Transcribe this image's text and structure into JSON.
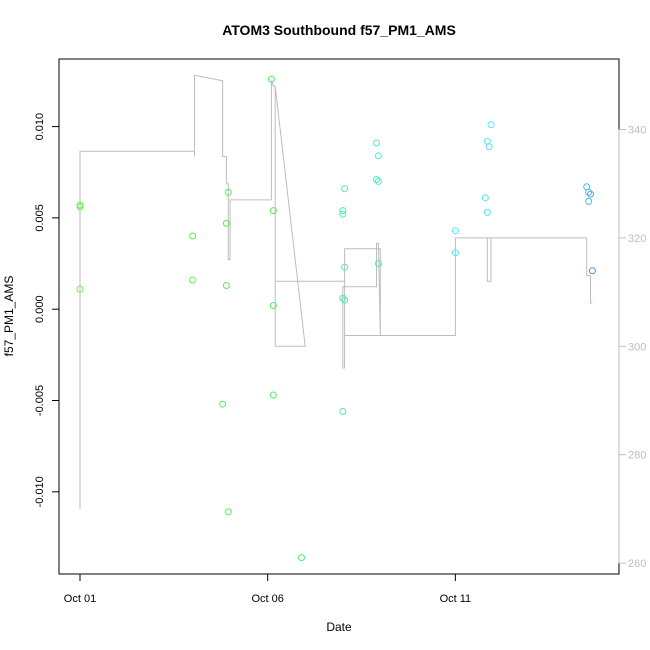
{
  "chart_data": {
    "type": "scatter",
    "title": "ATOM3 Southbound f57_PM1_AMS",
    "xlabel": "Date",
    "ylabel": "f57_PM1_AMS",
    "x_ticks": [
      {
        "day": 0,
        "label": "Oct 01"
      },
      {
        "day": 5,
        "label": "Oct 06"
      },
      {
        "day": 10,
        "label": "Oct 11"
      }
    ],
    "xlim": [
      0,
      13.8
    ],
    "ylim": [
      -0.0145,
      0.0137
    ],
    "y_ticks": [
      -0.01,
      -0.005,
      0.0,
      0.005,
      0.01
    ],
    "y_tick_labels": [
      "-0.010",
      "-0.005",
      "0.000",
      "0.005",
      "0.010"
    ],
    "y2_ticks": [
      260,
      280,
      300,
      320,
      340
    ],
    "y2_tick_labels": [
      "260",
      "280",
      "300",
      "320",
      "340"
    ],
    "y2lim": [
      258,
      353
    ],
    "points": [
      {
        "x": 0.0,
        "y": 0.0057,
        "color": "#6bf04a"
      },
      {
        "x": 0.0,
        "y": 0.0056,
        "color": "#6bf04a"
      },
      {
        "x": 0.0,
        "y": 0.0011,
        "color": "#6bf04a"
      },
      {
        "x": 3.0,
        "y": 0.004,
        "color": "#5ef04d"
      },
      {
        "x": 3.0,
        "y": 0.0016,
        "color": "#5ef04d"
      },
      {
        "x": 3.8,
        "y": -0.0052,
        "color": "#54f050"
      },
      {
        "x": 3.9,
        "y": 0.0047,
        "color": "#54f050"
      },
      {
        "x": 3.9,
        "y": 0.0013,
        "color": "#54f050"
      },
      {
        "x": 3.95,
        "y": 0.0064,
        "color": "#54f050"
      },
      {
        "x": 3.95,
        "y": -0.0111,
        "color": "#54f050"
      },
      {
        "x": 5.1,
        "y": 0.0126,
        "color": "#4df060"
      },
      {
        "x": 5.15,
        "y": 0.0054,
        "color": "#4df060"
      },
      {
        "x": 5.15,
        "y": 0.0002,
        "color": "#4df060"
      },
      {
        "x": 5.15,
        "y": -0.0047,
        "color": "#4df060"
      },
      {
        "x": 5.9,
        "y": -0.0136,
        "color": "#4df070"
      },
      {
        "x": 7.0,
        "y": 0.0054,
        "color": "#4ef0a0"
      },
      {
        "x": 7.0,
        "y": 0.0052,
        "color": "#4ef0a0"
      },
      {
        "x": 7.0,
        "y": 0.0006,
        "color": "#4ef0a0"
      },
      {
        "x": 7.0,
        "y": -0.0056,
        "color": "#4ef0a0"
      },
      {
        "x": 7.05,
        "y": 0.0066,
        "color": "#4ef0a8"
      },
      {
        "x": 7.05,
        "y": 0.0023,
        "color": "#4ef0a8"
      },
      {
        "x": 7.05,
        "y": 0.0005,
        "color": "#4ef0a8"
      },
      {
        "x": 7.9,
        "y": 0.0091,
        "color": "#4ef0c2"
      },
      {
        "x": 7.95,
        "y": 0.0084,
        "color": "#4ef0c2"
      },
      {
        "x": 7.9,
        "y": 0.0071,
        "color": "#4ef0c2"
      },
      {
        "x": 7.95,
        "y": 0.007,
        "color": "#4ef0c2"
      },
      {
        "x": 7.95,
        "y": 0.0025,
        "color": "#4ef0c2"
      },
      {
        "x": 10.0,
        "y": 0.0043,
        "color": "#4eeef0"
      },
      {
        "x": 10.0,
        "y": 0.0031,
        "color": "#4eeef0"
      },
      {
        "x": 10.8,
        "y": 0.0061,
        "color": "#4ee8f0"
      },
      {
        "x": 10.85,
        "y": 0.0092,
        "color": "#4ee8f0"
      },
      {
        "x": 10.9,
        "y": 0.0089,
        "color": "#4ee8f0"
      },
      {
        "x": 10.95,
        "y": 0.0101,
        "color": "#4ee8f0"
      },
      {
        "x": 10.85,
        "y": 0.0053,
        "color": "#4ee8f0"
      },
      {
        "x": 13.5,
        "y": 0.0067,
        "color": "#4cb8f0"
      },
      {
        "x": 13.55,
        "y": 0.0064,
        "color": "#4cb8f0"
      },
      {
        "x": 13.6,
        "y": 0.0063,
        "color": "#4ca8f0"
      },
      {
        "x": 13.55,
        "y": 0.0059,
        "color": "#4cb8f0"
      },
      {
        "x": 13.65,
        "y": 0.0021,
        "color": "#3f8ef0"
      }
    ],
    "heading_line": {
      "color": "#bdbdbd",
      "x": [
        0.0,
        0.0,
        0.0,
        3.05,
        3.05,
        3.05,
        3.8,
        3.8,
        3.9,
        3.9,
        3.95,
        3.95,
        4.0,
        4.0,
        5.1,
        5.1,
        5.1,
        5.15,
        5.2,
        5.2,
        6.0,
        5.2,
        5.2,
        7.0,
        7.0,
        7.05,
        7.05,
        7.0,
        7.0,
        7.9,
        7.9,
        7.95,
        7.95,
        8.0,
        8.0,
        7.05,
        7.05,
        10.0,
        10.0,
        10.85,
        10.85,
        10.95,
        10.95,
        10.95,
        10.0,
        13.5,
        13.5,
        13.6,
        13.6,
        13.65
      ],
      "y": [
        270,
        336,
        336,
        336,
        335,
        350,
        349,
        335,
        335,
        330,
        330,
        316,
        316,
        327,
        327,
        338,
        349,
        348,
        348,
        300,
        300,
        348,
        312,
        312,
        312,
        312,
        296,
        296,
        311,
        311,
        319,
        319,
        319,
        302,
        318,
        318,
        302,
        302,
        320,
        320,
        312,
        312,
        320,
        320,
        320,
        320,
        313,
        313,
        308,
        308
      ],
      "comment_style": "path order approximates the instrument heading trace"
    }
  }
}
